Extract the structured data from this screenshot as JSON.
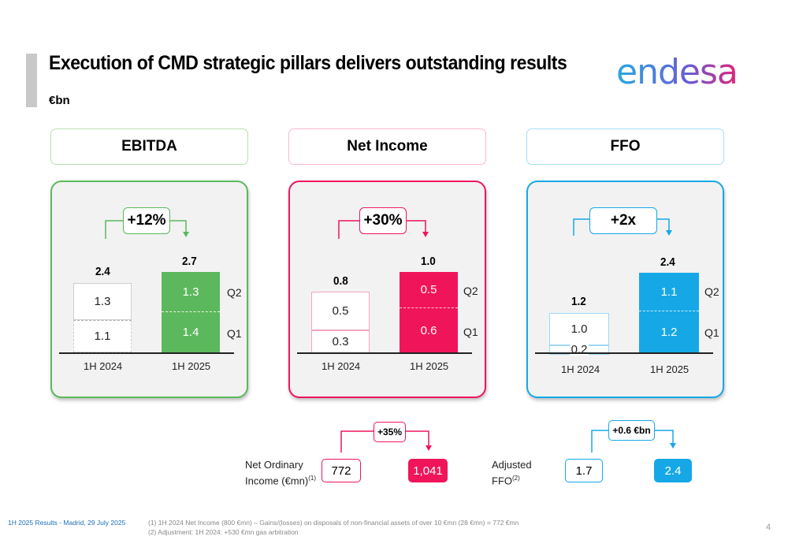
{
  "header": {
    "title": "Execution of CMD strategic pillars delivers outstanding results",
    "unit": "€bn",
    "logo_text": "endesa"
  },
  "colors": {
    "green": "#5cb85c",
    "pink": "#f0155a",
    "blue": "#16a8e6"
  },
  "ebitda": {
    "label": "EBITDA",
    "growth": "+12%",
    "total_2024": "2.4",
    "total_2025": "2.7",
    "q1_2024": "1.1",
    "q2_2024": "1.3",
    "q1_2025": "1.4",
    "q2_2025": "1.3",
    "x_2024": "1H 2024",
    "x_2025": "1H 2025",
    "q2_label": "Q2",
    "q1_label": "Q1"
  },
  "net_income": {
    "label": "Net Income",
    "growth": "+30%",
    "total_2024": "0.8",
    "total_2025": "1.0",
    "q1_2024": "0.3",
    "q2_2024": "0.5",
    "q1_2025": "0.6",
    "q2_2025": "0.5",
    "x_2024": "1H 2024",
    "x_2025": "1H 2025",
    "q2_label": "Q2",
    "q1_label": "Q1"
  },
  "ffo": {
    "label": "FFO",
    "growth": "+2x",
    "total_2024": "1.2",
    "total_2025": "2.4",
    "q1_2024": "0.2",
    "q2_2024": "1.0",
    "q1_2025": "1.2",
    "q2_2025": "1.1",
    "x_2024": "1H 2024",
    "x_2025": "1H 2025",
    "q2_label": "Q2",
    "q1_label": "Q1"
  },
  "net_ordinary": {
    "label_line1": "Net Ordinary",
    "label_line2": "Income (€mn)",
    "footnote_ref": "(1)",
    "growth": "+35%",
    "value_2024": "772",
    "value_2025": "1,041"
  },
  "adjusted_ffo": {
    "label_line1": "Adjusted",
    "label_line2": "FFO",
    "footnote_ref": "(2)",
    "growth": "+0.6 €bn",
    "value_2024": "1.7",
    "value_2025": "2.4"
  },
  "footer": {
    "source": "1H 2025 Results - Madrid, 29 July 2025",
    "note1": "(1) 1H 2024 Net Income (800 €mn) – Gains/(losses) on disposals of non-financial assets of over 10 €mn (28 €mn) = 772  €mn",
    "note2": "(2) Adjustment: 1H 2024: +530 €mn gas arbitration",
    "page": "4"
  }
}
